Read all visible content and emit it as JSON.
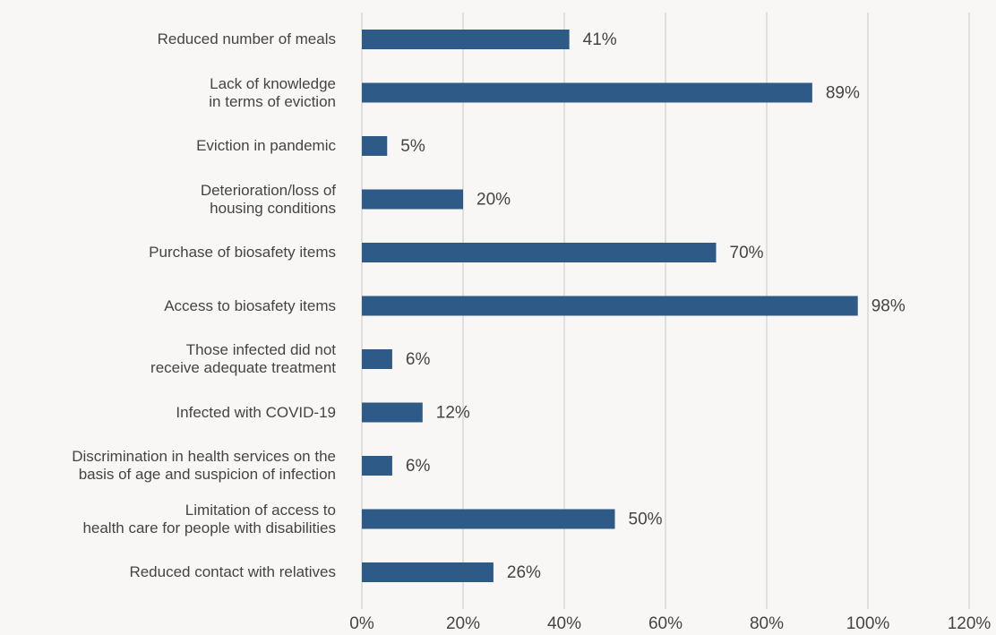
{
  "chart_data": {
    "type": "bar",
    "orientation": "horizontal",
    "categories": [
      "Reduced number of meals",
      "Lack of knowledge\nin terms of eviction",
      "Eviction in pandemic",
      "Deterioration/loss of\nhousing conditions",
      "Purchase of biosafety items",
      "Access to biosafety items",
      "Those infected did not\nreceive adequate treatment",
      "Infected with COVID-19",
      "Discrimination in health services on the\nbasis of age and suspicion of infection",
      "Limitation of access to\nhealth care for people with disabilities",
      "Reduced contact with relatives"
    ],
    "values": [
      41,
      89,
      5,
      20,
      70,
      98,
      6,
      12,
      6,
      50,
      26
    ],
    "value_labels": [
      "41%",
      "89%",
      "5%",
      "20%",
      "70%",
      "98%",
      "6%",
      "12%",
      "6%",
      "50%",
      "26%"
    ],
    "color": "#2e5a87",
    "xlim": [
      0,
      120
    ],
    "xticks": [
      {
        "value": 0,
        "label": "0%"
      },
      {
        "value": 20,
        "label": "20%"
      },
      {
        "value": 40,
        "label": "40%"
      },
      {
        "value": 60,
        "label": "60%"
      },
      {
        "value": 80,
        "label": "80%"
      },
      {
        "value": 100,
        "label": "100%"
      },
      {
        "value": 120,
        "label": "120%"
      }
    ],
    "grid": true
  }
}
